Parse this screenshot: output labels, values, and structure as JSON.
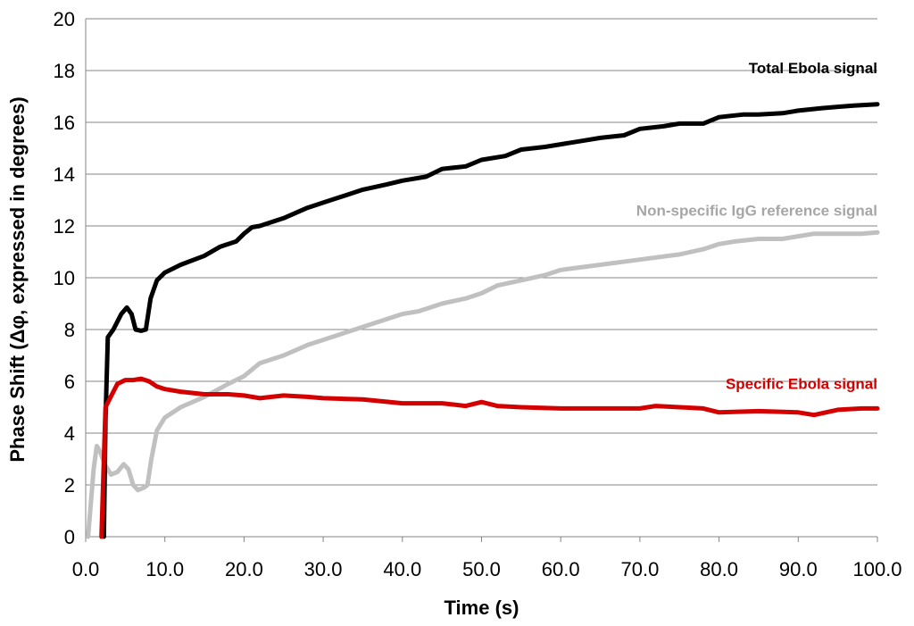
{
  "chart_data": {
    "type": "line",
    "title": "",
    "xlabel": "Time (s)",
    "ylabel": "Phase Shift  (Δφ, expressed in degrees)",
    "xlim": [
      0,
      100
    ],
    "ylim": [
      0,
      20
    ],
    "grid": true,
    "x_ticks": [
      0,
      10,
      20,
      30,
      40,
      50,
      60,
      70,
      80,
      90,
      100
    ],
    "x_tick_labels": [
      "0.0",
      "10.0",
      "20.0",
      "30.0",
      "40.0",
      "50.0",
      "60.0",
      "70.0",
      "80.0",
      "90.0",
      "100.0"
    ],
    "y_ticks": [
      0,
      2,
      4,
      6,
      8,
      10,
      12,
      14,
      16,
      18,
      20
    ],
    "y_tick_labels": [
      "0",
      "2",
      "4",
      "6",
      "8",
      "10",
      "12",
      "14",
      "16",
      "18",
      "20"
    ],
    "series": [
      {
        "name": "Non-specific IgG reference signal",
        "color": "#c0c0c0",
        "points": [
          [
            0.3,
            0
          ],
          [
            1.0,
            2.6
          ],
          [
            1.4,
            3.5
          ],
          [
            1.8,
            3.3
          ],
          [
            2.4,
            2.8
          ],
          [
            3.2,
            2.4
          ],
          [
            4.0,
            2.5
          ],
          [
            4.8,
            2.8
          ],
          [
            5.4,
            2.6
          ],
          [
            6.0,
            2.0
          ],
          [
            6.6,
            1.8
          ],
          [
            7.4,
            1.9
          ],
          [
            7.8,
            2.0
          ],
          [
            8.3,
            3.0
          ],
          [
            9.0,
            4.1
          ],
          [
            10.0,
            4.6
          ],
          [
            12.0,
            5.0
          ],
          [
            15.0,
            5.4
          ],
          [
            18.0,
            5.9
          ],
          [
            20.0,
            6.2
          ],
          [
            22.0,
            6.7
          ],
          [
            25.0,
            7.0
          ],
          [
            28.0,
            7.4
          ],
          [
            30.0,
            7.6
          ],
          [
            35.0,
            8.1
          ],
          [
            40.0,
            8.6
          ],
          [
            42.0,
            8.7
          ],
          [
            45.0,
            9.0
          ],
          [
            48.0,
            9.2
          ],
          [
            50.0,
            9.4
          ],
          [
            52.0,
            9.7
          ],
          [
            55.0,
            9.9
          ],
          [
            58.0,
            10.1
          ],
          [
            60.0,
            10.3
          ],
          [
            65.0,
            10.5
          ],
          [
            70.0,
            10.7
          ],
          [
            75.0,
            10.9
          ],
          [
            78.0,
            11.1
          ],
          [
            80.0,
            11.3
          ],
          [
            82.0,
            11.4
          ],
          [
            85.0,
            11.5
          ],
          [
            88.0,
            11.5
          ],
          [
            90.0,
            11.6
          ],
          [
            92.0,
            11.7
          ],
          [
            95.0,
            11.7
          ],
          [
            98.0,
            11.7
          ],
          [
            100.0,
            11.75
          ]
        ]
      },
      {
        "name": "Total Ebola signal",
        "color": "#000000",
        "points": [
          [
            2.3,
            0
          ],
          [
            2.5,
            4.5
          ],
          [
            2.8,
            7.7
          ],
          [
            3.5,
            8.0
          ],
          [
            4.5,
            8.6
          ],
          [
            5.2,
            8.85
          ],
          [
            5.8,
            8.6
          ],
          [
            6.3,
            8.0
          ],
          [
            7.0,
            7.95
          ],
          [
            7.6,
            8.0
          ],
          [
            8.2,
            9.2
          ],
          [
            9.0,
            9.9
          ],
          [
            10.0,
            10.2
          ],
          [
            12.0,
            10.5
          ],
          [
            15.0,
            10.85
          ],
          [
            17.0,
            11.2
          ],
          [
            19.0,
            11.4
          ],
          [
            20.0,
            11.7
          ],
          [
            21.0,
            11.95
          ],
          [
            22.0,
            12.0
          ],
          [
            25.0,
            12.3
          ],
          [
            28.0,
            12.7
          ],
          [
            30.0,
            12.9
          ],
          [
            33.0,
            13.2
          ],
          [
            35.0,
            13.4
          ],
          [
            38.0,
            13.6
          ],
          [
            40.0,
            13.75
          ],
          [
            43.0,
            13.9
          ],
          [
            45.0,
            14.2
          ],
          [
            48.0,
            14.3
          ],
          [
            50.0,
            14.55
          ],
          [
            53.0,
            14.7
          ],
          [
            55.0,
            14.95
          ],
          [
            58.0,
            15.05
          ],
          [
            60.0,
            15.15
          ],
          [
            63.0,
            15.3
          ],
          [
            65.0,
            15.4
          ],
          [
            68.0,
            15.5
          ],
          [
            70.0,
            15.75
          ],
          [
            73.0,
            15.85
          ],
          [
            75.0,
            15.95
          ],
          [
            78.0,
            15.95
          ],
          [
            80.0,
            16.2
          ],
          [
            83.0,
            16.3
          ],
          [
            85.0,
            16.3
          ],
          [
            88.0,
            16.35
          ],
          [
            90.0,
            16.45
          ],
          [
            93.0,
            16.55
          ],
          [
            95.0,
            16.6
          ],
          [
            97.0,
            16.65
          ],
          [
            100.0,
            16.7
          ]
        ]
      },
      {
        "name": "Specific Ebola signal",
        "color": "#d40000",
        "points": [
          [
            2.0,
            0
          ],
          [
            2.3,
            3.0
          ],
          [
            2.5,
            5.0
          ],
          [
            3.0,
            5.3
          ],
          [
            3.5,
            5.6
          ],
          [
            4.0,
            5.9
          ],
          [
            5.0,
            6.05
          ],
          [
            6.0,
            6.05
          ],
          [
            7.0,
            6.1
          ],
          [
            8.0,
            6.0
          ],
          [
            9.0,
            5.8
          ],
          [
            10.0,
            5.7
          ],
          [
            12.0,
            5.6
          ],
          [
            15.0,
            5.5
          ],
          [
            18.0,
            5.5
          ],
          [
            20.0,
            5.45
          ],
          [
            22.0,
            5.35
          ],
          [
            25.0,
            5.45
          ],
          [
            28.0,
            5.4
          ],
          [
            30.0,
            5.35
          ],
          [
            35.0,
            5.3
          ],
          [
            40.0,
            5.15
          ],
          [
            45.0,
            5.15
          ],
          [
            48.0,
            5.05
          ],
          [
            50.0,
            5.2
          ],
          [
            52.0,
            5.05
          ],
          [
            55.0,
            5.0
          ],
          [
            60.0,
            4.95
          ],
          [
            65.0,
            4.95
          ],
          [
            70.0,
            4.95
          ],
          [
            72.0,
            5.05
          ],
          [
            75.0,
            5.0
          ],
          [
            78.0,
            4.95
          ],
          [
            80.0,
            4.8
          ],
          [
            85.0,
            4.85
          ],
          [
            90.0,
            4.8
          ],
          [
            92.0,
            4.7
          ],
          [
            95.0,
            4.9
          ],
          [
            98.0,
            4.95
          ],
          [
            100.0,
            4.95
          ]
        ]
      }
    ],
    "annotations": [
      {
        "text": "Total Ebola signal",
        "series": 1,
        "anchor_x": 100,
        "anchor_y": 17.9
      },
      {
        "text": "Non-specific IgG reference signal",
        "series": 0,
        "anchor_x": 100,
        "anchor_y": 12.4
      },
      {
        "text": "Specific Ebola signal",
        "series": 2,
        "anchor_x": 100,
        "anchor_y": 5.7
      }
    ]
  }
}
